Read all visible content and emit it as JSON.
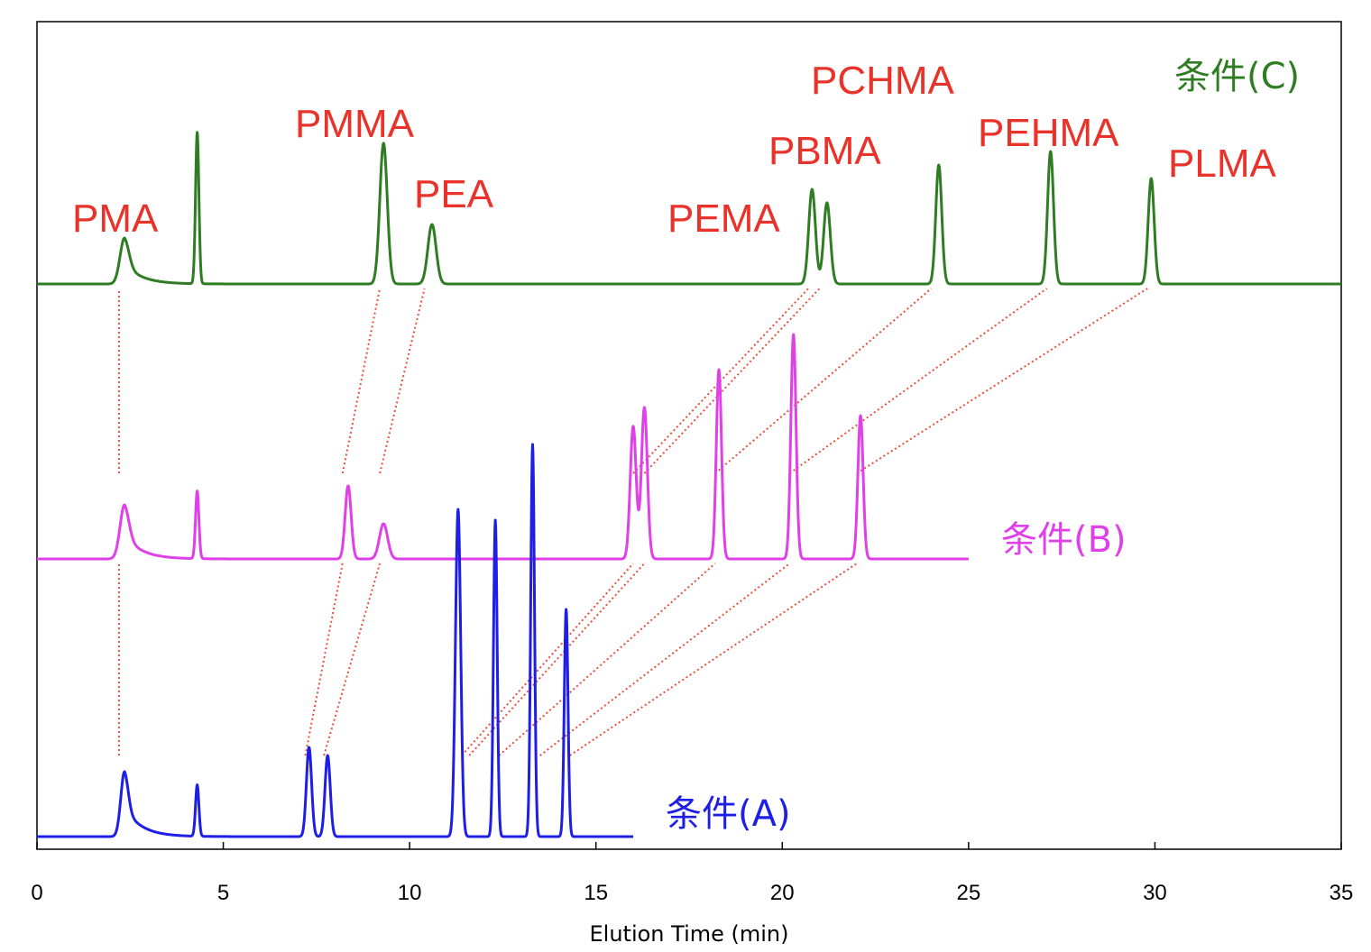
{
  "chart_data": {
    "type": "line",
    "title": "",
    "xlabel": "Elution Time (min)",
    "ylabel": "",
    "xlim": [
      0,
      35
    ],
    "x_ticks": [
      0,
      5,
      10,
      15,
      20,
      25,
      30,
      35
    ],
    "x_tick_labels": [
      "0",
      "5",
      "10",
      "15",
      "20",
      "25",
      "30",
      "35"
    ],
    "grid": false,
    "series": [
      {
        "name": "条件(C)",
        "color": "#2f7d22",
        "x_end": 35,
        "peaks": [
          {
            "t": 2.35,
            "h": 0.17,
            "w": 0.12,
            "tail": true
          },
          {
            "t": 4.3,
            "h": 0.56,
            "w": 0.045
          },
          {
            "t": 9.3,
            "h": 0.52,
            "w": 0.1
          },
          {
            "t": 10.6,
            "h": 0.22,
            "w": 0.11
          },
          {
            "t": 20.8,
            "h": 0.35,
            "w": 0.09
          },
          {
            "t": 21.2,
            "h": 0.3,
            "w": 0.09
          },
          {
            "t": 24.2,
            "h": 0.44,
            "w": 0.08
          },
          {
            "t": 27.2,
            "h": 0.49,
            "w": 0.08
          },
          {
            "t": 29.9,
            "h": 0.39,
            "w": 0.08
          }
        ]
      },
      {
        "name": "条件(B)",
        "color": "#e040e8",
        "x_end": 25,
        "peaks": [
          {
            "t": 2.35,
            "h": 0.2,
            "w": 0.12,
            "tail": true
          },
          {
            "t": 4.3,
            "h": 0.25,
            "w": 0.045
          },
          {
            "t": 8.35,
            "h": 0.27,
            "w": 0.08
          },
          {
            "t": 9.3,
            "h": 0.13,
            "w": 0.11
          },
          {
            "t": 16.0,
            "h": 0.49,
            "w": 0.08
          },
          {
            "t": 16.3,
            "h": 0.56,
            "w": 0.08
          },
          {
            "t": 18.3,
            "h": 0.7,
            "w": 0.07
          },
          {
            "t": 20.3,
            "h": 0.83,
            "w": 0.07
          },
          {
            "t": 22.1,
            "h": 0.53,
            "w": 0.07
          }
        ]
      },
      {
        "name": "条件(A)",
        "color": "#1e1ee6",
        "x_end": 16,
        "peaks": [
          {
            "t": 2.35,
            "h": 0.24,
            "w": 0.1,
            "tail": true
          },
          {
            "t": 4.3,
            "h": 0.19,
            "w": 0.045
          },
          {
            "t": 7.3,
            "h": 0.33,
            "w": 0.07
          },
          {
            "t": 7.8,
            "h": 0.3,
            "w": 0.07
          },
          {
            "t": 11.3,
            "h": 1.21,
            "w": 0.07
          },
          {
            "t": 12.3,
            "h": 1.17,
            "w": 0.05
          },
          {
            "t": 13.3,
            "h": 1.45,
            "w": 0.05
          },
          {
            "t": 14.2,
            "h": 0.84,
            "w": 0.05
          }
        ]
      }
    ],
    "annotations": {
      "peak_labels": [
        "PMA",
        "PMMA",
        "PEA",
        "PEMA",
        "PBMA",
        "PCHMA",
        "PEHMA",
        "PLMA"
      ],
      "condition_labels": [
        "条件(C)",
        "条件(B)",
        "条件(A)"
      ],
      "connector_color": "#e8503c",
      "label_color": "#e8322a",
      "connectors": [
        {
          "a": 2.2,
          "b": 2.2,
          "c": 2.2
        },
        {
          "a": 7.2,
          "b": 8.2,
          "c": 9.2
        },
        {
          "a": 7.7,
          "b": 9.2,
          "c": 10.4
        },
        {
          "a": 11.4,
          "b": 16.0,
          "c": 20.7
        },
        {
          "a": 11.6,
          "b": 16.3,
          "c": 21.0
        },
        {
          "a": 12.4,
          "b": 18.2,
          "c": 24.0
        },
        {
          "a": 13.5,
          "b": 20.2,
          "c": 27.1
        },
        {
          "a": 14.3,
          "b": 22.0,
          "c": 29.8
        }
      ]
    }
  }
}
